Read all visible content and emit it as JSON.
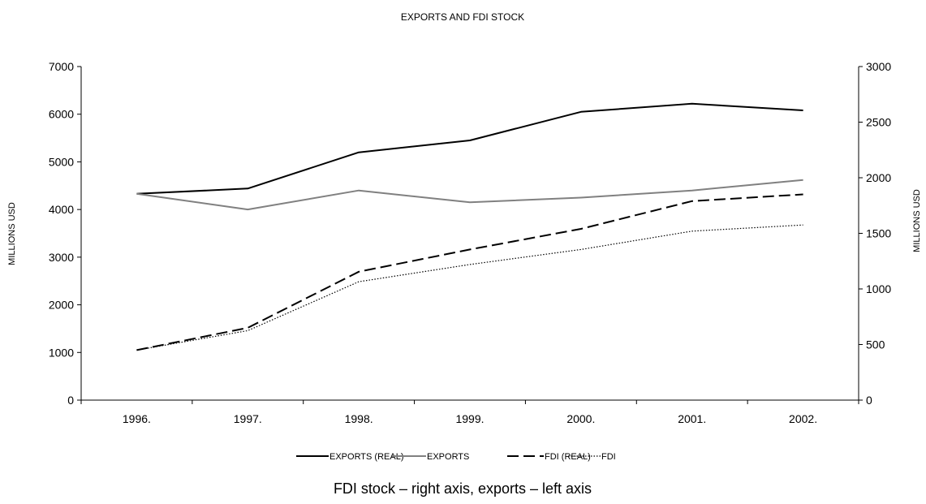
{
  "chart_data": {
    "type": "line",
    "title": "EXPORTS AND FDI STOCK",
    "categories": [
      "1996.",
      "1997.",
      "1998.",
      "1999.",
      "2000.",
      "2001.",
      "2002."
    ],
    "y_left": {
      "label": "MILLIONS USD",
      "range": [
        0,
        7000
      ],
      "ticks": [
        "0",
        "1000",
        "2000",
        "3000",
        "4000",
        "5000",
        "6000",
        "7000"
      ]
    },
    "y_right": {
      "label": "MILLIONS USD",
      "range": [
        0,
        3000
      ],
      "ticks": [
        "0",
        "500",
        "1000",
        "1500",
        "2000",
        "2500",
        "3000"
      ]
    },
    "series": [
      {
        "name": "EXPORTS (REAL)",
        "axis": "left",
        "color": "#000000",
        "style": "solid",
        "values": [
          4330,
          4440,
          5200,
          5450,
          6050,
          6220,
          6080
        ]
      },
      {
        "name": "EXPORTS",
        "axis": "left",
        "color": "#808080",
        "style": "solid",
        "values": [
          4330,
          4000,
          4400,
          4150,
          4250,
          4400,
          4620
        ]
      },
      {
        "name": "FDI (REAL)",
        "axis": "right",
        "color": "#000000",
        "style": "dashed",
        "values": [
          450,
          650,
          1155,
          1355,
          1540,
          1790,
          1850
        ]
      },
      {
        "name": "FDI",
        "axis": "right",
        "color": "#000000",
        "style": "dotted",
        "values": [
          450,
          625,
          1065,
          1220,
          1355,
          1520,
          1575
        ]
      }
    ],
    "grid": false,
    "legend": "bottom",
    "caption": "FDI stock – right axis, exports – left axis"
  }
}
